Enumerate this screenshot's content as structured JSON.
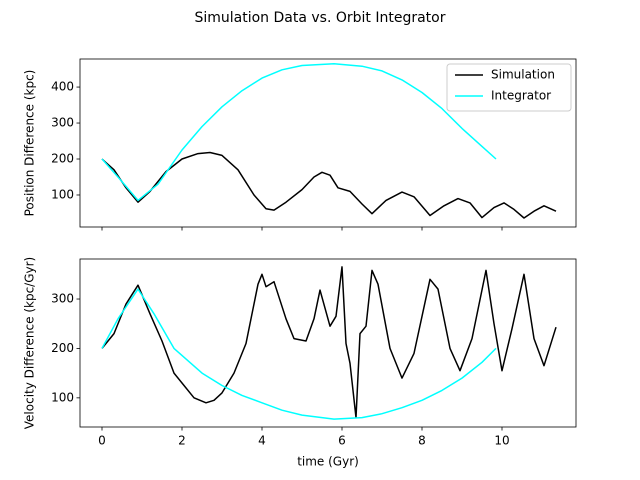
{
  "title": "Simulation Data vs. Orbit Integrator",
  "chart_data": [
    {
      "type": "line",
      "ylabel": "Position Difference (kpc)",
      "xlim": [
        -0.55,
        11.85
      ],
      "xticks": [
        0,
        2,
        4,
        6,
        8,
        10
      ],
      "show_xtick_labels": false,
      "ylim": [
        11,
        478
      ],
      "yticks": [
        100,
        200,
        300,
        400
      ],
      "legend": "upper right",
      "series": [
        {
          "name": "Simulation",
          "color": "#000000",
          "x": [
            0,
            0.3,
            0.6,
            0.9,
            1.2,
            1.6,
            2.0,
            2.4,
            2.7,
            3.0,
            3.4,
            3.8,
            4.1,
            4.3,
            4.6,
            5.0,
            5.3,
            5.5,
            5.7,
            5.9,
            6.2,
            6.5,
            6.75,
            7.1,
            7.5,
            7.8,
            8.2,
            8.55,
            8.9,
            9.2,
            9.5,
            9.8,
            10.05,
            10.3,
            10.55,
            10.8,
            11.05,
            11.35
          ],
          "values": [
            200,
            170,
            120,
            80,
            110,
            165,
            200,
            215,
            218,
            210,
            170,
            100,
            62,
            58,
            80,
            115,
            150,
            163,
            155,
            120,
            110,
            75,
            48,
            85,
            108,
            95,
            43,
            70,
            90,
            78,
            37,
            65,
            78,
            60,
            36,
            55,
            70,
            55
          ]
        },
        {
          "name": "Integrator",
          "color": "#00ffff",
          "x": [
            0,
            0.4,
            0.9,
            1.4,
            2,
            2.5,
            3,
            3.5,
            4,
            4.5,
            5,
            5.8,
            6.5,
            7,
            7.5,
            8,
            8.5,
            9,
            9.5,
            9.85
          ],
          "values": [
            200,
            150,
            85,
            130,
            225,
            290,
            345,
            390,
            425,
            448,
            460,
            465,
            458,
            445,
            420,
            385,
            340,
            285,
            235,
            200
          ]
        }
      ]
    },
    {
      "type": "line",
      "ylabel": "Velocity Difference (kpc/Gyr)",
      "xlabel": "time (Gyr)",
      "xlim": [
        -0.55,
        11.85
      ],
      "xticks": [
        0,
        2,
        4,
        6,
        8,
        10
      ],
      "show_xtick_labels": true,
      "ylim": [
        41,
        381
      ],
      "yticks": [
        100,
        200,
        300
      ],
      "series": [
        {
          "name": "Simulation",
          "color": "#000000",
          "x": [
            0,
            0.3,
            0.6,
            0.9,
            1.2,
            1.5,
            1.8,
            2.0,
            2.3,
            2.6,
            2.8,
            3.0,
            3.3,
            3.6,
            3.9,
            4.0,
            4.1,
            4.3,
            4.6,
            4.8,
            5.1,
            5.3,
            5.45,
            5.7,
            5.85,
            6.0,
            6.1,
            6.2,
            6.35,
            6.45,
            6.6,
            6.75,
            6.9,
            7.2,
            7.5,
            7.8,
            8.2,
            8.4,
            8.7,
            8.95,
            9.25,
            9.6,
            9.8,
            10.0,
            10.25,
            10.55,
            10.8,
            11.05,
            11.35
          ],
          "values": [
            200,
            230,
            290,
            328,
            270,
            215,
            150,
            130,
            100,
            90,
            95,
            110,
            150,
            210,
            330,
            350,
            325,
            335,
            260,
            220,
            215,
            260,
            318,
            245,
            265,
            365,
            210,
            170,
            60,
            230,
            245,
            358,
            330,
            200,
            140,
            190,
            340,
            320,
            200,
            155,
            220,
            358,
            250,
            155,
            240,
            350,
            220,
            165,
            243
          ]
        },
        {
          "name": "Integrator",
          "color": "#00ffff",
          "x": [
            0,
            0.4,
            0.9,
            1.3,
            1.8,
            2.5,
            3,
            3.5,
            4,
            4.5,
            5,
            5.8,
            6.5,
            7,
            7.5,
            8,
            8.5,
            9,
            9.5,
            9.85
          ],
          "values": [
            200,
            260,
            320,
            270,
            200,
            150,
            125,
            105,
            90,
            75,
            65,
            57,
            60,
            68,
            80,
            95,
            115,
            140,
            172,
            200
          ]
        }
      ]
    }
  ]
}
